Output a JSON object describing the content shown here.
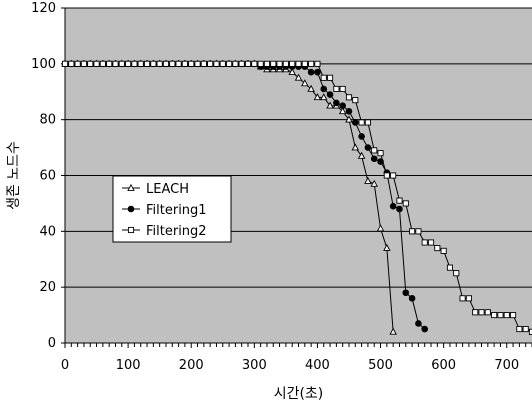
{
  "chart_data": {
    "type": "line",
    "title": "",
    "xlabel": "시간(초)",
    "ylabel": "생존 노드수",
    "xlim": [
      0,
      740
    ],
    "ylim": [
      0,
      120
    ],
    "xticks": [
      0,
      100,
      200,
      300,
      400,
      500,
      600,
      700
    ],
    "yticks": [
      0,
      20,
      40,
      60,
      80,
      100,
      120
    ],
    "grid": "horizontal",
    "background_color": "#c0c0c0",
    "legend_position": "left-middle",
    "series": [
      {
        "name": "LEACH",
        "marker": "triangle",
        "points": [
          [
            0,
            100
          ],
          [
            10,
            100
          ],
          [
            20,
            100
          ],
          [
            30,
            100
          ],
          [
            40,
            100
          ],
          [
            50,
            100
          ],
          [
            60,
            100
          ],
          [
            70,
            100
          ],
          [
            80,
            100
          ],
          [
            90,
            100
          ],
          [
            100,
            100
          ],
          [
            110,
            100
          ],
          [
            120,
            100
          ],
          [
            130,
            100
          ],
          [
            140,
            100
          ],
          [
            150,
            100
          ],
          [
            160,
            100
          ],
          [
            170,
            100
          ],
          [
            180,
            100
          ],
          [
            190,
            100
          ],
          [
            200,
            100
          ],
          [
            210,
            100
          ],
          [
            220,
            100
          ],
          [
            230,
            100
          ],
          [
            240,
            100
          ],
          [
            250,
            100
          ],
          [
            260,
            100
          ],
          [
            270,
            100
          ],
          [
            280,
            100
          ],
          [
            290,
            100
          ],
          [
            300,
            100
          ],
          [
            310,
            99
          ],
          [
            320,
            98
          ],
          [
            330,
            98
          ],
          [
            340,
            98
          ],
          [
            350,
            98
          ],
          [
            360,
            97
          ],
          [
            370,
            95
          ],
          [
            380,
            93
          ],
          [
            390,
            91
          ],
          [
            400,
            88
          ],
          [
            410,
            88
          ],
          [
            420,
            85
          ],
          [
            430,
            85
          ],
          [
            440,
            83
          ],
          [
            450,
            80
          ],
          [
            460,
            70
          ],
          [
            470,
            67
          ],
          [
            480,
            58
          ],
          [
            490,
            57
          ],
          [
            500,
            41
          ],
          [
            510,
            34
          ],
          [
            520,
            4
          ]
        ]
      },
      {
        "name": "Filtering1",
        "marker": "circle",
        "points": [
          [
            0,
            100
          ],
          [
            10,
            100
          ],
          [
            20,
            100
          ],
          [
            30,
            100
          ],
          [
            40,
            100
          ],
          [
            50,
            100
          ],
          [
            60,
            100
          ],
          [
            70,
            100
          ],
          [
            80,
            100
          ],
          [
            90,
            100
          ],
          [
            100,
            100
          ],
          [
            110,
            100
          ],
          [
            120,
            100
          ],
          [
            130,
            100
          ],
          [
            140,
            100
          ],
          [
            150,
            100
          ],
          [
            160,
            100
          ],
          [
            170,
            100
          ],
          [
            180,
            100
          ],
          [
            190,
            100
          ],
          [
            200,
            100
          ],
          [
            210,
            100
          ],
          [
            220,
            100
          ],
          [
            230,
            100
          ],
          [
            240,
            100
          ],
          [
            250,
            100
          ],
          [
            260,
            100
          ],
          [
            270,
            100
          ],
          [
            280,
            100
          ],
          [
            290,
            100
          ],
          [
            300,
            100
          ],
          [
            310,
            99
          ],
          [
            320,
            99
          ],
          [
            330,
            99
          ],
          [
            340,
            99
          ],
          [
            350,
            99
          ],
          [
            360,
            99
          ],
          [
            370,
            99
          ],
          [
            380,
            99
          ],
          [
            390,
            97
          ],
          [
            400,
            97
          ],
          [
            410,
            91
          ],
          [
            420,
            89
          ],
          [
            430,
            86
          ],
          [
            440,
            85
          ],
          [
            450,
            83
          ],
          [
            460,
            79
          ],
          [
            470,
            74
          ],
          [
            480,
            70
          ],
          [
            490,
            66
          ],
          [
            500,
            65
          ],
          [
            510,
            61
          ],
          [
            520,
            49
          ],
          [
            530,
            48
          ],
          [
            540,
            18
          ],
          [
            550,
            16
          ],
          [
            560,
            7
          ],
          [
            570,
            5
          ]
        ]
      },
      {
        "name": "Filtering2",
        "marker": "square",
        "points": [
          [
            0,
            100
          ],
          [
            10,
            100
          ],
          [
            20,
            100
          ],
          [
            30,
            100
          ],
          [
            40,
            100
          ],
          [
            50,
            100
          ],
          [
            60,
            100
          ],
          [
            70,
            100
          ],
          [
            80,
            100
          ],
          [
            90,
            100
          ],
          [
            100,
            100
          ],
          [
            110,
            100
          ],
          [
            120,
            100
          ],
          [
            130,
            100
          ],
          [
            140,
            100
          ],
          [
            150,
            100
          ],
          [
            160,
            100
          ],
          [
            170,
            100
          ],
          [
            180,
            100
          ],
          [
            190,
            100
          ],
          [
            200,
            100
          ],
          [
            210,
            100
          ],
          [
            220,
            100
          ],
          [
            230,
            100
          ],
          [
            240,
            100
          ],
          [
            250,
            100
          ],
          [
            260,
            100
          ],
          [
            270,
            100
          ],
          [
            280,
            100
          ],
          [
            290,
            100
          ],
          [
            300,
            100
          ],
          [
            310,
            100
          ],
          [
            320,
            100
          ],
          [
            330,
            100
          ],
          [
            340,
            100
          ],
          [
            350,
            100
          ],
          [
            360,
            100
          ],
          [
            370,
            100
          ],
          [
            380,
            100
          ],
          [
            390,
            100
          ],
          [
            400,
            100
          ],
          [
            410,
            95
          ],
          [
            420,
            95
          ],
          [
            430,
            91
          ],
          [
            440,
            91
          ],
          [
            450,
            88
          ],
          [
            460,
            87
          ],
          [
            470,
            79
          ],
          [
            480,
            79
          ],
          [
            490,
            69
          ],
          [
            500,
            68
          ],
          [
            510,
            60
          ],
          [
            520,
            60
          ],
          [
            530,
            51
          ],
          [
            540,
            50
          ],
          [
            550,
            40
          ],
          [
            560,
            40
          ],
          [
            570,
            36
          ],
          [
            580,
            36
          ],
          [
            590,
            34
          ],
          [
            600,
            33
          ],
          [
            610,
            27
          ],
          [
            620,
            25
          ],
          [
            630,
            16
          ],
          [
            640,
            16
          ],
          [
            650,
            11
          ],
          [
            660,
            11
          ],
          [
            670,
            11
          ],
          [
            680,
            10
          ],
          [
            690,
            10
          ],
          [
            700,
            10
          ],
          [
            710,
            10
          ],
          [
            720,
            5
          ],
          [
            730,
            5
          ],
          [
            740,
            4
          ]
        ]
      }
    ]
  }
}
